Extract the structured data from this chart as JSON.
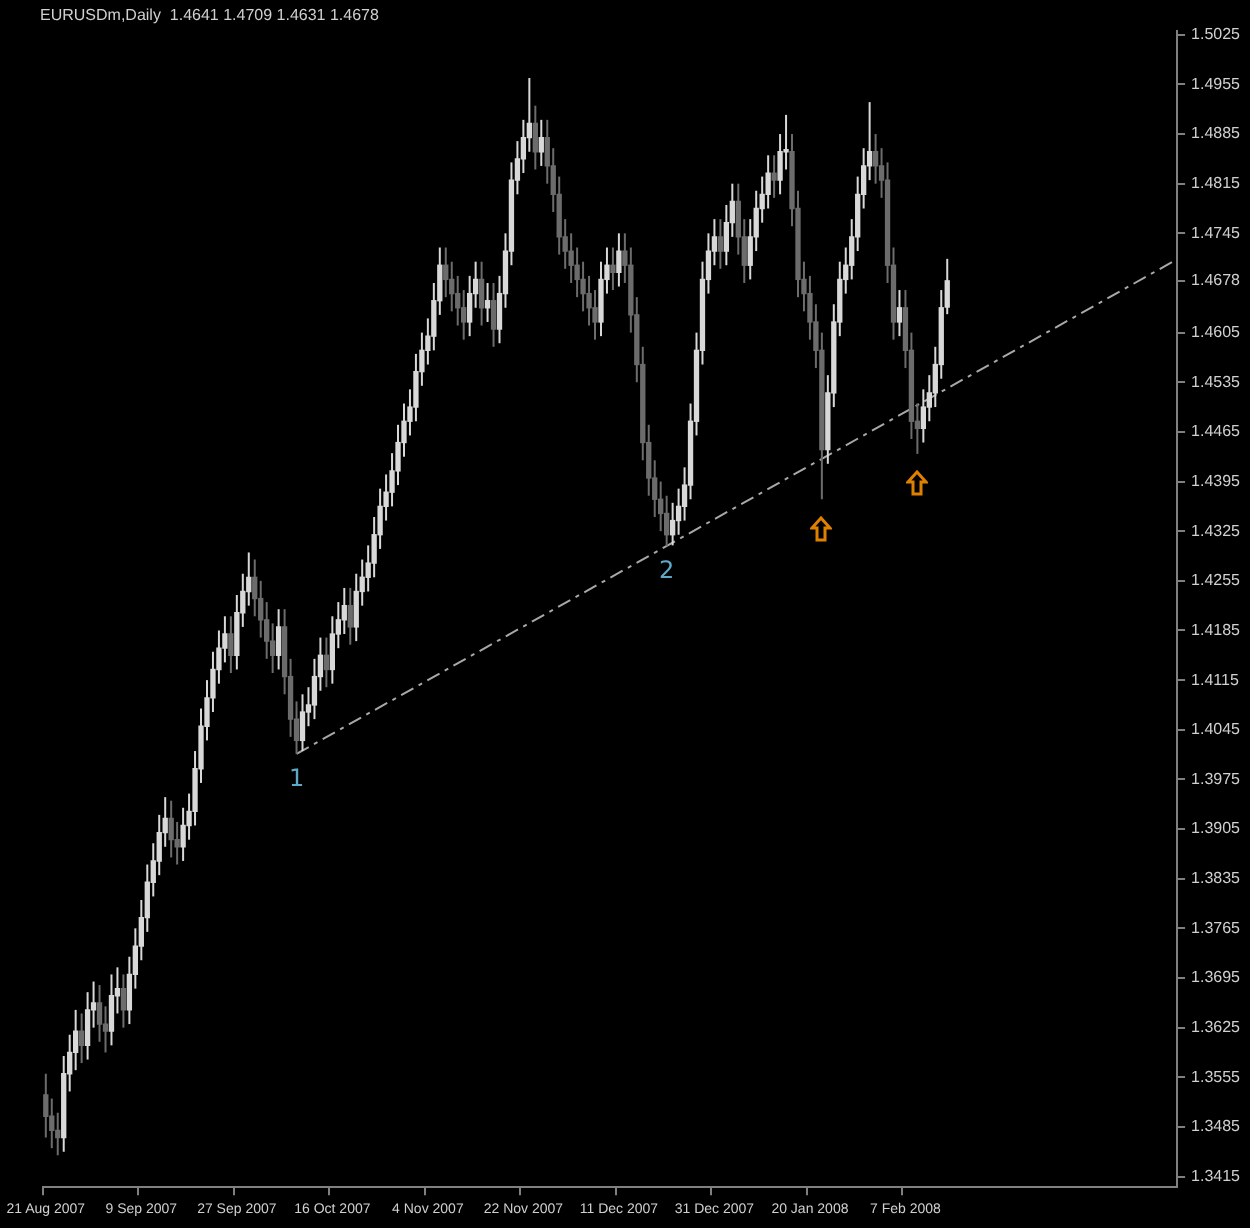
{
  "chart_data": {
    "type": "candlestick",
    "title": "EURUSDm,Daily  1.4641 1.4709 1.4631 1.4678",
    "colors": [
      "#6c6c6c",
      "#6c6c6c",
      "#6c6c6c",
      "#d8d8d8",
      "#d8d8d8",
      "#d8d8d8",
      "#6c6c6c",
      "#d8d8d8",
      "#d8d8d8",
      "#6c6c6c",
      "#6c6c6c",
      "#d8d8d8",
      "#d8d8d8",
      "#6c6c6c",
      "#d8d8d8",
      "#d8d8d8",
      "#d8d8d8",
      "#d8d8d8",
      "#d8d8d8",
      "#d8d8d8",
      "#d8d8d8",
      "#6c6c6c",
      "#6c6c6c",
      "#d8d8d8",
      "#d8d8d8",
      "#d8d8d8",
      "#d8d8d8",
      "#d8d8d8",
      "#d8d8d8",
      "#d8d8d8",
      "#d8d8d8",
      "#6c6c6c",
      "#d8d8d8",
      "#d8d8d8",
      "#d8d8d8",
      "#6c6c6c",
      "#6c6c6c",
      "#6c6c6c",
      "#6c6c6c",
      "#d8d8d8",
      "#6c6c6c",
      "#6c6c6c",
      "#6c6c6c",
      "#d8d8d8",
      "#d8d8d8",
      "#d8d8d8",
      "#d8d8d8",
      "#6c6c6c",
      "#d8d8d8",
      "#d8d8d8",
      "#d8d8d8",
      "#6c6c6c",
      "#d8d8d8",
      "#d8d8d8",
      "#d8d8d8",
      "#d8d8d8",
      "#d8d8d8",
      "#d8d8d8",
      "#d8d8d8",
      "#d8d8d8",
      "#d8d8d8",
      "#d8d8d8",
      "#d8d8d8",
      "#d8d8d8",
      "#d8d8d8",
      "#d8d8d8",
      "#d8d8d8",
      "#6c6c6c",
      "#6c6c6c",
      "#6c6c6c",
      "#6c6c6c",
      "#d8d8d8",
      "#d8d8d8",
      "#6c6c6c",
      "#d8d8d8",
      "#6c6c6c",
      "#d8d8d8",
      "#d8d8d8",
      "#d8d8d8",
      "#d8d8d8",
      "#d8d8d8",
      "#d8d8d8",
      "#6c6c6c",
      "#d8d8d8",
      "#6c6c6c",
      "#6c6c6c",
      "#6c6c6c",
      "#6c6c6c",
      "#6c6c6c",
      "#6c6c6c",
      "#6c6c6c",
      "#6c6c6c",
      "#6c6c6c",
      "#d8d8d8",
      "#d8d8d8",
      "#6c6c6c",
      "#d8d8d8",
      "#6c6c6c",
      "#6c6c6c",
      "#6c6c6c",
      "#6c6c6c",
      "#6c6c6c",
      "#6c6c6c",
      "#6c6c6c",
      "#6c6c6c",
      "#d8d8d8",
      "#d8d8d8",
      "#d8d8d8",
      "#d8d8d8",
      "#d8d8d8",
      "#d8d8d8",
      "#d8d8d8",
      "#d8d8d8",
      "#6c6c6c",
      "#d8d8d8",
      "#d8d8d8",
      "#6c6c6c",
      "#6c6c6c",
      "#d8d8d8",
      "#d8d8d8",
      "#d8d8d8",
      "#d8d8d8",
      "#6c6c6c",
      "#d8d8d8",
      "#d8d8d8",
      "#6c6c6c",
      "#6c6c6c",
      "#6c6c6c",
      "#6c6c6c",
      "#6c6c6c",
      "#6c6c6c",
      "#d8d8d8",
      "#d8d8d8",
      "#d8d8d8",
      "#d8d8d8",
      "#d8d8d8",
      "#d8d8d8",
      "#d8d8d8",
      "#d8d8d8",
      "#6c6c6c",
      "#6c6c6c",
      "#6c6c6c",
      "#6c6c6c",
      "#d8d8d8",
      "#6c6c6c",
      "#6c6c6c",
      "#6c6c6c",
      "#d8d8d8",
      "#d8d8d8",
      "#d8d8d8",
      "#d8d8d8",
      "#d8d8d8",
      null,
      null,
      null,
      null,
      null,
      null,
      null,
      null,
      null,
      null,
      null,
      null,
      null,
      null,
      null,
      null,
      null,
      null,
      null,
      null,
      null,
      null,
      null,
      null,
      null,
      null,
      null,
      null,
      null,
      null,
      null,
      null,
      null,
      null,
      null,
      null,
      null,
      null
    ],
    "categories": [
      "21 Aug 2007",
      null,
      null,
      null,
      null,
      null,
      null,
      null,
      null,
      null,
      null,
      null,
      null,
      null,
      null,
      null,
      "9 Sep 2007",
      null,
      null,
      null,
      null,
      null,
      null,
      null,
      null,
      null,
      null,
      null,
      null,
      null,
      null,
      null,
      "27 Sep 2007",
      null,
      null,
      null,
      null,
      null,
      null,
      null,
      null,
      null,
      null,
      null,
      null,
      null,
      null,
      null,
      "16 Oct 2007",
      null,
      null,
      null,
      null,
      null,
      null,
      null,
      null,
      null,
      null,
      null,
      null,
      null,
      null,
      null,
      "4 Nov 2007",
      null,
      null,
      null,
      null,
      null,
      null,
      null,
      null,
      null,
      null,
      null,
      null,
      null,
      null,
      null,
      "22 Nov 2007",
      null,
      null,
      null,
      null,
      null,
      null,
      null,
      null,
      null,
      null,
      null,
      null,
      null,
      null,
      null,
      "11 Dec 2007",
      null,
      null,
      null,
      null,
      null,
      null,
      null,
      null,
      null,
      null,
      null,
      null,
      null,
      null,
      null,
      "31 Dec 2007",
      null,
      null,
      null,
      null,
      null,
      null,
      null,
      null,
      null,
      null,
      null,
      null,
      null,
      null,
      null,
      "20 Jan 2008",
      null,
      null,
      null,
      null,
      null,
      null,
      null,
      null,
      null,
      null,
      null,
      null,
      null,
      null,
      null,
      "7 Feb 2008",
      null,
      null,
      null,
      null,
      null,
      null,
      null,
      null,
      null,
      null,
      null,
      null,
      null,
      null,
      null,
      null,
      null,
      null,
      null,
      null,
      null,
      null,
      null,
      null,
      null,
      null,
      null,
      null,
      null,
      null,
      null,
      null,
      null,
      null,
      null,
      null,
      null,
      null,
      null,
      null,
      null,
      null,
      null,
      null,
      null
    ],
    "ohlc": [
      [
        1.353,
        1.356,
        1.347,
        1.35
      ],
      [
        1.35,
        1.3525,
        1.3455,
        1.348
      ],
      [
        1.348,
        1.3505,
        1.3445,
        1.347
      ],
      [
        1.347,
        1.3585,
        1.345,
        1.356
      ],
      [
        1.356,
        1.3615,
        1.3535,
        1.359
      ],
      [
        1.359,
        1.365,
        1.3565,
        1.362
      ],
      [
        1.362,
        1.3645,
        1.3575,
        1.36
      ],
      [
        1.36,
        1.3675,
        1.358,
        1.365
      ],
      [
        1.365,
        1.369,
        1.3625,
        1.366
      ],
      [
        1.366,
        1.3685,
        1.3605,
        1.363
      ],
      [
        1.363,
        1.3655,
        1.359,
        1.362
      ],
      [
        1.362,
        1.37,
        1.36,
        1.367
      ],
      [
        1.367,
        1.371,
        1.3645,
        1.368
      ],
      [
        1.368,
        1.37,
        1.3625,
        1.365
      ],
      [
        1.365,
        1.3725,
        1.363,
        1.37
      ],
      [
        1.37,
        1.3765,
        1.368,
        1.374
      ],
      [
        1.374,
        1.3805,
        1.372,
        1.378
      ],
      [
        1.378,
        1.3855,
        1.376,
        1.383
      ],
      [
        1.383,
        1.3885,
        1.381,
        1.386
      ],
      [
        1.386,
        1.3925,
        1.384,
        1.39
      ],
      [
        1.39,
        1.395,
        1.388,
        1.392
      ],
      [
        1.392,
        1.3945,
        1.3865,
        1.389
      ],
      [
        1.389,
        1.3915,
        1.3855,
        1.388
      ],
      [
        1.388,
        1.3935,
        1.386,
        1.391
      ],
      [
        1.391,
        1.3955,
        1.389,
        1.393
      ],
      [
        1.393,
        1.4015,
        1.391,
        1.399
      ],
      [
        1.399,
        1.4075,
        1.397,
        1.405
      ],
      [
        1.405,
        1.4115,
        1.403,
        1.409
      ],
      [
        1.409,
        1.4155,
        1.407,
        1.413
      ],
      [
        1.413,
        1.4185,
        1.411,
        1.416
      ],
      [
        1.416,
        1.4205,
        1.414,
        1.418
      ],
      [
        1.418,
        1.4205,
        1.4125,
        1.415
      ],
      [
        1.415,
        1.4235,
        1.413,
        1.421
      ],
      [
        1.421,
        1.4265,
        1.419,
        1.424
      ],
      [
        1.424,
        1.4295,
        1.422,
        1.426
      ],
      [
        1.426,
        1.4285,
        1.4205,
        1.423
      ],
      [
        1.423,
        1.4255,
        1.4175,
        1.42
      ],
      [
        1.42,
        1.4225,
        1.4145,
        1.417
      ],
      [
        1.417,
        1.4195,
        1.4125,
        1.415
      ],
      [
        1.415,
        1.4215,
        1.413,
        1.419
      ],
      [
        1.419,
        1.4215,
        1.4095,
        1.412
      ],
      [
        1.412,
        1.4145,
        1.4035,
        1.406
      ],
      [
        1.406,
        1.4085,
        1.4011,
        1.403
      ],
      [
        1.403,
        1.4095,
        1.4015,
        1.407
      ],
      [
        1.407,
        1.4105,
        1.405,
        1.408
      ],
      [
        1.408,
        1.4145,
        1.406,
        1.412
      ],
      [
        1.412,
        1.4175,
        1.41,
        1.415
      ],
      [
        1.415,
        1.4175,
        1.4105,
        1.413
      ],
      [
        1.413,
        1.4205,
        1.411,
        1.418
      ],
      [
        1.418,
        1.4225,
        1.416,
        1.42
      ],
      [
        1.42,
        1.4245,
        1.418,
        1.422
      ],
      [
        1.422,
        1.4245,
        1.4165,
        1.419
      ],
      [
        1.419,
        1.4265,
        1.417,
        1.424
      ],
      [
        1.424,
        1.4285,
        1.422,
        1.426
      ],
      [
        1.426,
        1.4305,
        1.424,
        1.428
      ],
      [
        1.428,
        1.4345,
        1.426,
        1.432
      ],
      [
        1.432,
        1.4385,
        1.43,
        1.436
      ],
      [
        1.436,
        1.4405,
        1.434,
        1.438
      ],
      [
        1.438,
        1.4435,
        1.436,
        1.441
      ],
      [
        1.441,
        1.4475,
        1.439,
        1.445
      ],
      [
        1.445,
        1.4505,
        1.443,
        1.448
      ],
      [
        1.448,
        1.4525,
        1.446,
        1.45
      ],
      [
        1.45,
        1.4575,
        1.448,
        1.455
      ],
      [
        1.455,
        1.4605,
        1.453,
        1.458
      ],
      [
        1.458,
        1.4625,
        1.456,
        1.46
      ],
      [
        1.46,
        1.4675,
        1.458,
        1.465
      ],
      [
        1.465,
        1.4725,
        1.463,
        1.47
      ],
      [
        1.47,
        1.4725,
        1.4655,
        1.468
      ],
      [
        1.468,
        1.4705,
        1.4635,
        1.466
      ],
      [
        1.466,
        1.4685,
        1.4615,
        1.464
      ],
      [
        1.464,
        1.4665,
        1.4595,
        1.462
      ],
      [
        1.462,
        1.4685,
        1.46,
        1.466
      ],
      [
        1.466,
        1.4705,
        1.464,
        1.468
      ],
      [
        1.468,
        1.4705,
        1.4615,
        1.464
      ],
      [
        1.464,
        1.4675,
        1.462,
        1.465
      ],
      [
        1.465,
        1.4675,
        1.4585,
        1.461
      ],
      [
        1.461,
        1.4685,
        1.459,
        1.466
      ],
      [
        1.466,
        1.4745,
        1.464,
        1.472
      ],
      [
        1.472,
        1.4845,
        1.47,
        1.482
      ],
      [
        1.482,
        1.4875,
        1.48,
        1.485
      ],
      [
        1.485,
        1.4905,
        1.483,
        1.488
      ],
      [
        1.488,
        1.4964,
        1.486,
        1.49
      ],
      [
        1.49,
        1.4925,
        1.4835,
        1.486
      ],
      [
        1.486,
        1.4905,
        1.484,
        1.488
      ],
      [
        1.488,
        1.4905,
        1.4815,
        1.484
      ],
      [
        1.484,
        1.4865,
        1.4775,
        1.48
      ],
      [
        1.48,
        1.4825,
        1.4715,
        1.474
      ],
      [
        1.474,
        1.4765,
        1.4695,
        1.472
      ],
      [
        1.472,
        1.4745,
        1.4675,
        1.47
      ],
      [
        1.47,
        1.4725,
        1.4655,
        1.468
      ],
      [
        1.468,
        1.4705,
        1.4635,
        1.466
      ],
      [
        1.466,
        1.4685,
        1.4615,
        1.464
      ],
      [
        1.464,
        1.4665,
        1.4595,
        1.462
      ],
      [
        1.462,
        1.4705,
        1.46,
        1.468
      ],
      [
        1.468,
        1.4725,
        1.466,
        1.47
      ],
      [
        1.47,
        1.4725,
        1.4665,
        1.469
      ],
      [
        1.469,
        1.4745,
        1.467,
        1.472
      ],
      [
        1.472,
        1.4745,
        1.4675,
        1.47
      ],
      [
        1.47,
        1.4725,
        1.4605,
        1.463
      ],
      [
        1.463,
        1.4655,
        1.4535,
        1.456
      ],
      [
        1.456,
        1.4585,
        1.4425,
        1.445
      ],
      [
        1.445,
        1.4475,
        1.4375,
        1.44
      ],
      [
        1.44,
        1.4425,
        1.4345,
        1.437
      ],
      [
        1.437,
        1.4395,
        1.4325,
        1.435
      ],
      [
        1.435,
        1.4375,
        1.4304,
        1.432
      ],
      [
        1.432,
        1.4365,
        1.4305,
        1.434
      ],
      [
        1.434,
        1.4385,
        1.432,
        1.436
      ],
      [
        1.436,
        1.4415,
        1.434,
        1.439
      ],
      [
        1.439,
        1.4505,
        1.437,
        1.448
      ],
      [
        1.448,
        1.4605,
        1.446,
        1.458
      ],
      [
        1.458,
        1.4705,
        1.456,
        1.468
      ],
      [
        1.468,
        1.4745,
        1.466,
        1.472
      ],
      [
        1.472,
        1.4765,
        1.47,
        1.474
      ],
      [
        1.474,
        1.4765,
        1.4695,
        1.472
      ],
      [
        1.472,
        1.4785,
        1.47,
        1.476
      ],
      [
        1.476,
        1.4815,
        1.474,
        1.479
      ],
      [
        1.479,
        1.4815,
        1.4715,
        1.474
      ],
      [
        1.474,
        1.4765,
        1.4675,
        1.47
      ],
      [
        1.47,
        1.4765,
        1.468,
        1.474
      ],
      [
        1.474,
        1.4805,
        1.472,
        1.478
      ],
      [
        1.478,
        1.4825,
        1.476,
        1.48
      ],
      [
        1.48,
        1.4855,
        1.478,
        1.483
      ],
      [
        1.483,
        1.4855,
        1.4795,
        1.482
      ],
      [
        1.482,
        1.4885,
        1.48,
        1.486
      ],
      [
        1.486,
        1.4912,
        1.4835,
        1.486
      ],
      [
        1.486,
        1.4885,
        1.4755,
        1.478
      ],
      [
        1.478,
        1.4805,
        1.4655,
        1.468
      ],
      [
        1.468,
        1.4705,
        1.4635,
        1.466
      ],
      [
        1.466,
        1.4685,
        1.4595,
        1.462
      ],
      [
        1.462,
        1.4645,
        1.4555,
        1.458
      ],
      [
        1.458,
        1.4605,
        1.437,
        1.444
      ],
      [
        1.444,
        1.4545,
        1.442,
        1.452
      ],
      [
        1.452,
        1.4645,
        1.45,
        1.462
      ],
      [
        1.462,
        1.4705,
        1.46,
        1.468
      ],
      [
        1.468,
        1.4725,
        1.466,
        1.47
      ],
      [
        1.47,
        1.4765,
        1.468,
        1.474
      ],
      [
        1.474,
        1.4825,
        1.472,
        1.48
      ],
      [
        1.48,
        1.4865,
        1.478,
        1.484
      ],
      [
        1.484,
        1.493,
        1.482,
        1.486
      ],
      [
        1.486,
        1.4885,
        1.4815,
        1.484
      ],
      [
        1.484,
        1.4865,
        1.4795,
        1.482
      ],
      [
        1.482,
        1.4845,
        1.4675,
        1.47
      ],
      [
        1.47,
        1.4725,
        1.4595,
        1.462
      ],
      [
        1.462,
        1.4665,
        1.46,
        1.464
      ],
      [
        1.464,
        1.4665,
        1.4555,
        1.458
      ],
      [
        1.458,
        1.4605,
        1.4455,
        1.448
      ],
      [
        1.448,
        1.4505,
        1.4434,
        1.447
      ],
      [
        1.447,
        1.4525,
        1.445,
        1.45
      ],
      [
        1.45,
        1.4545,
        1.448,
        1.452
      ],
      [
        1.452,
        1.4585,
        1.45,
        1.456
      ],
      [
        1.456,
        1.4665,
        1.454,
        1.464
      ],
      [
        1.4641,
        1.4709,
        1.4631,
        1.4678
      ],
      null,
      null,
      null,
      null,
      null,
      null,
      null,
      null,
      null,
      null,
      null,
      null,
      null,
      null,
      null,
      null,
      null,
      null,
      null,
      null,
      null,
      null,
      null,
      null,
      null,
      null,
      null,
      null,
      null,
      null,
      null,
      null,
      null,
      null,
      null,
      null,
      null,
      null
    ],
    "series": [
      {
        "type": "line",
        "color": "#a8a8a8",
        "line_style": "dashed",
        "values": [
          null,
          null,
          null,
          null,
          null,
          null,
          null,
          null,
          null,
          null,
          null,
          null,
          null,
          null,
          null,
          null,
          null,
          null,
          null,
          null,
          null,
          null,
          null,
          null,
          null,
          null,
          null,
          null,
          null,
          null,
          null,
          null,
          null,
          null,
          null,
          null,
          null,
          null,
          null,
          null,
          null,
          null,
          1.4011,
          null,
          null,
          null,
          null,
          null,
          null,
          null,
          null,
          null,
          null,
          null,
          null,
          null,
          null,
          null,
          null,
          null,
          null,
          null,
          null,
          null,
          null,
          null,
          null,
          null,
          null,
          null,
          null,
          null,
          null,
          null,
          null,
          null,
          null,
          null,
          null,
          null,
          null,
          null,
          null,
          null,
          null,
          null,
          null,
          null,
          null,
          null,
          null,
          null,
          null,
          null,
          null,
          null,
          null,
          null,
          null,
          null,
          null,
          null,
          null,
          null,
          null,
          null,
          null,
          null,
          null,
          null,
          null,
          null,
          null,
          null,
          null,
          null,
          null,
          null,
          null,
          null,
          null,
          null,
          null,
          null,
          null,
          null,
          null,
          null,
          null,
          null,
          null,
          null,
          null,
          null,
          null,
          null,
          null,
          null,
          null,
          null,
          null,
          null,
          null,
          null,
          null,
          null,
          null,
          null,
          null,
          null,
          null,
          null,
          null,
          null,
          null,
          null,
          null,
          null,
          null,
          null,
          null,
          null,
          null,
          null,
          null,
          null,
          null,
          null,
          null,
          null,
          null,
          null,
          null,
          null,
          null,
          null,
          null,
          null,
          null,
          null,
          null,
          null,
          null,
          null,
          null,
          null,
          null,
          null,
          null,
          1.4706
        ]
      }
    ],
    "ylim": [
      1.34,
      1.503
    ],
    "yticks": [
      1.3415,
      1.3485,
      1.3555,
      1.3625,
      1.3695,
      1.3765,
      1.3835,
      1.3905,
      1.3975,
      1.4045,
      1.4115,
      1.4185,
      1.4255,
      1.4325,
      1.4395,
      1.4465,
      1.4535,
      1.4605,
      {
        "value": 1.4678,
        "label": "1.4678"
      },
      1.4745,
      1.4815,
      1.4885,
      1.4955,
      1.5025
    ],
    "annotations": [
      {
        "text": "1",
        "y": 1.4011
      },
      {
        "text": "2",
        "y": 1.4304
      }
    ],
    "legend": false,
    "grid": false
  }
}
